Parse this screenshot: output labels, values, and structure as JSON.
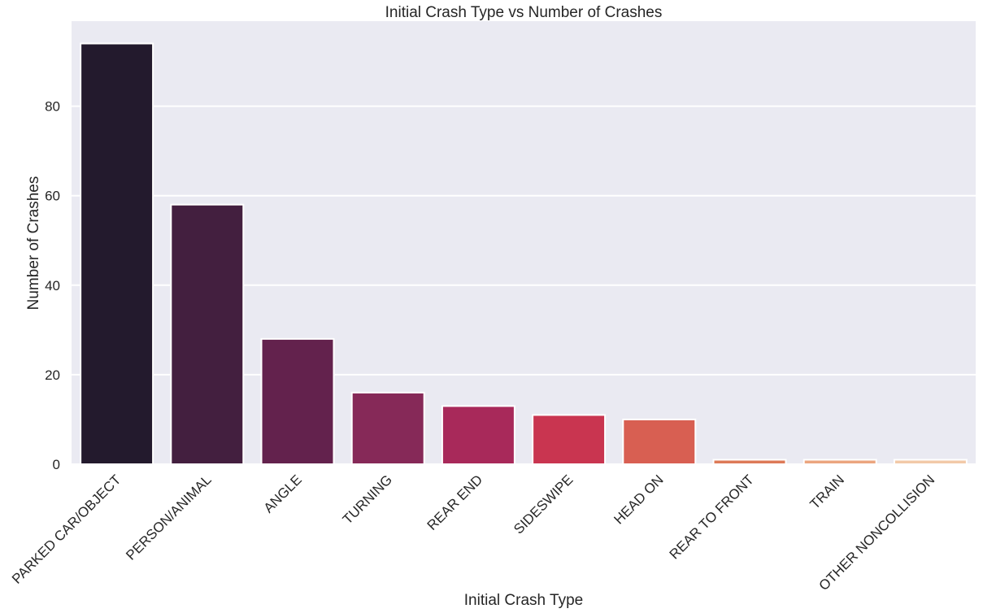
{
  "chart_data": {
    "type": "bar",
    "title": "Initial Crash Type vs Number of Crashes",
    "xlabel": "Initial Crash Type",
    "ylabel": "Number of Crashes",
    "categories": [
      "PARKED CAR/OBJECT",
      "PERSON/ANIMAL",
      "ANGLE",
      "TURNING",
      "REAR END",
      "SIDESWIPE",
      "HEAD ON",
      "REAR TO FRONT",
      "TRAIN",
      "OTHER NONCOLLISION"
    ],
    "values": [
      94,
      58,
      28,
      16,
      13,
      11,
      10,
      1,
      1,
      1
    ],
    "ylim": [
      0,
      99
    ],
    "yticks": [
      0,
      20,
      40,
      60,
      80
    ],
    "grid": true,
    "colors": [
      "#231a2d",
      "#431f3f",
      "#63224d",
      "#862958",
      "#a8295a",
      "#c93550",
      "#d85f52",
      "#dd7a58",
      "#eba57f",
      "#f2c9a8"
    ],
    "background": "#eaeaf2"
  }
}
